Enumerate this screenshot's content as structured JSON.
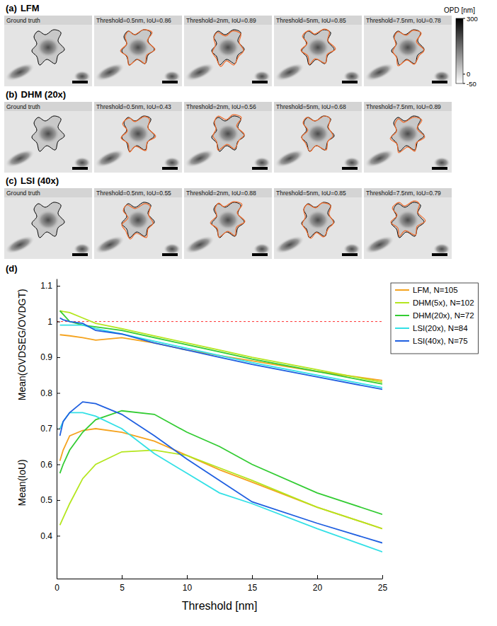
{
  "image_panels": [
    {
      "label": "(a)",
      "title": "LFM",
      "tiles": [
        "Ground truth",
        "Threshold=0.5nm, IoU=0.86",
        "Threshold=2nm, IoU=0.89",
        "Threshold=5nm, IoU=0.85",
        "Threshold=7.5nm, IoU=0.78"
      ]
    },
    {
      "label": "(b)",
      "title": "DHM (20x)",
      "tiles": [
        "Ground truth",
        "Threshold=0.5nm, IoU=0.43",
        "Threshold=2nm, IoU=0.56",
        "Threshold=5nm, IoU=0.68",
        "Threshold=7.5nm, IoU=0.89"
      ]
    },
    {
      "label": "(c)",
      "title": "LSI (40x)",
      "tiles": [
        "Ground truth",
        "Threshold=0.5nm, IoU=0.55",
        "Threshold=2nm, IoU=0.88",
        "Threshold=5nm, IoU=0.85",
        "Threshold=7.5nm, IoU=0.79"
      ]
    }
  ],
  "colorbar": {
    "title": "OPD [nm]",
    "range": [
      -50,
      300
    ],
    "ticks": [
      300,
      0,
      -50
    ]
  },
  "chart_data": {
    "type": "line",
    "panel_label": "(d)",
    "x_label": "Threshold [nm]",
    "y_labels": [
      "Mean(OVDSEG/OVDGT)",
      "Mean(IoU)"
    ],
    "x": [
      0.25,
      0.5,
      1,
      2,
      3,
      5,
      7.5,
      10,
      12.5,
      15,
      20,
      25
    ],
    "xlim": [
      0,
      25
    ],
    "xticks": [
      0,
      5,
      10,
      15,
      20,
      25
    ],
    "ylim": [
      0.28,
      1.12
    ],
    "yticks": [
      0.4,
      0.5,
      0.6,
      0.7,
      0.8,
      0.9,
      1,
      1.1
    ],
    "grid": false,
    "legend": "right",
    "hline": {
      "value": 1,
      "color": "#ff0000",
      "line_style": "dashed"
    },
    "series": [
      {
        "name": "LFM, N=105",
        "color": "#f5a31e",
        "values": [
          0.963,
          0.962,
          0.96,
          0.955,
          0.948,
          0.955,
          0.94,
          0.92,
          0.905,
          0.89,
          0.86,
          0.835
        ],
        "iou": [
          0.61,
          0.64,
          0.68,
          0.695,
          0.7,
          0.69,
          0.665,
          0.625,
          0.585,
          0.55,
          0.48,
          0.42
        ]
      },
      {
        "name": "DHM(5x), N=102",
        "color": "#b4e61e",
        "values": [
          1.03,
          1.028,
          1.025,
          1.01,
          0.995,
          0.98,
          0.96,
          0.94,
          0.92,
          0.9,
          0.865,
          0.83
        ],
        "iou": [
          0.43,
          0.45,
          0.49,
          0.56,
          0.6,
          0.635,
          0.64,
          0.625,
          0.59,
          0.555,
          0.48,
          0.42
        ]
      },
      {
        "name": "DHM(20x), N=72",
        "color": "#33cc33",
        "values": [
          1.03,
          1.02,
          1.0,
          0.99,
          0.985,
          0.975,
          0.955,
          0.935,
          0.915,
          0.895,
          0.86,
          0.825
        ],
        "iou": [
          0.575,
          0.6,
          0.64,
          0.69,
          0.725,
          0.75,
          0.74,
          0.69,
          0.65,
          0.6,
          0.52,
          0.46
        ]
      },
      {
        "name": "LSI(20x), N=84",
        "color": "#33e0e6",
        "values": [
          0.99,
          0.99,
          0.99,
          0.99,
          0.98,
          0.965,
          0.945,
          0.925,
          0.905,
          0.885,
          0.85,
          0.815
        ],
        "iou": [
          0.7,
          0.72,
          0.745,
          0.745,
          0.735,
          0.7,
          0.63,
          0.575,
          0.52,
          0.49,
          0.42,
          0.355
        ]
      },
      {
        "name": "LSI(40x), N=75",
        "color": "#1f5fe0",
        "values": [
          1.01,
          1.005,
          1.0,
          0.995,
          0.975,
          0.965,
          0.94,
          0.92,
          0.9,
          0.88,
          0.845,
          0.81
        ],
        "iou": [
          0.68,
          0.72,
          0.745,
          0.775,
          0.77,
          0.74,
          0.68,
          0.615,
          0.555,
          0.495,
          0.435,
          0.38
        ]
      }
    ]
  }
}
